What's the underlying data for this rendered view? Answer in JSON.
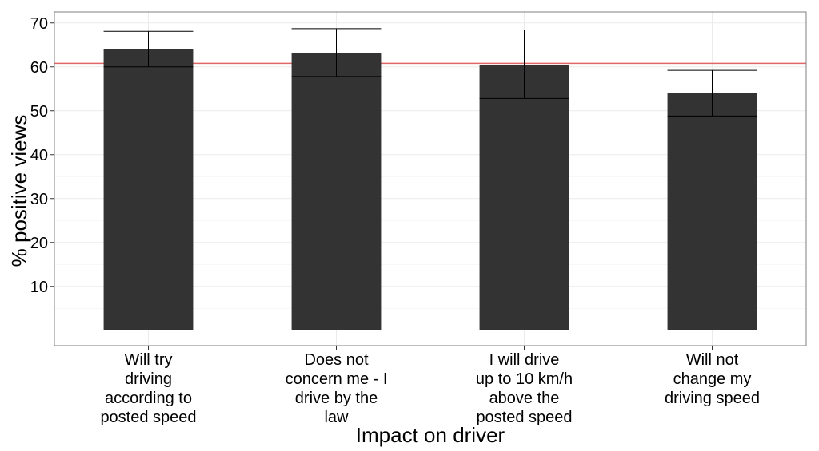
{
  "chart_data": {
    "type": "bar",
    "title": "",
    "xlabel": "Impact on driver",
    "ylabel": "% positive views",
    "ylim": [
      -3.5,
      72.5
    ],
    "yticks": [
      10,
      20,
      30,
      40,
      50,
      60,
      70
    ],
    "grid": true,
    "colors": {
      "bar": "#333333",
      "reference_line": "#e06666",
      "grid": "#ebebeb",
      "panel_border": "#7f7f7f",
      "error_bar": "#000000"
    },
    "categories": [
      [
        "Will try",
        "driving",
        "according to",
        "posted speed"
      ],
      [
        "Does not",
        "concern me - I",
        "drive by the",
        "law"
      ],
      [
        "I will drive",
        "up to 10 km/h",
        "above the",
        "posted speed"
      ],
      [
        "Will not",
        "change my",
        "driving speed"
      ]
    ],
    "values": [
      64.0,
      63.2,
      60.5,
      54.0
    ],
    "error_low": [
      60.0,
      57.8,
      52.8,
      48.8
    ],
    "error_high": [
      68.1,
      68.7,
      68.4,
      59.2
    ],
    "reference_line": 60.8
  }
}
